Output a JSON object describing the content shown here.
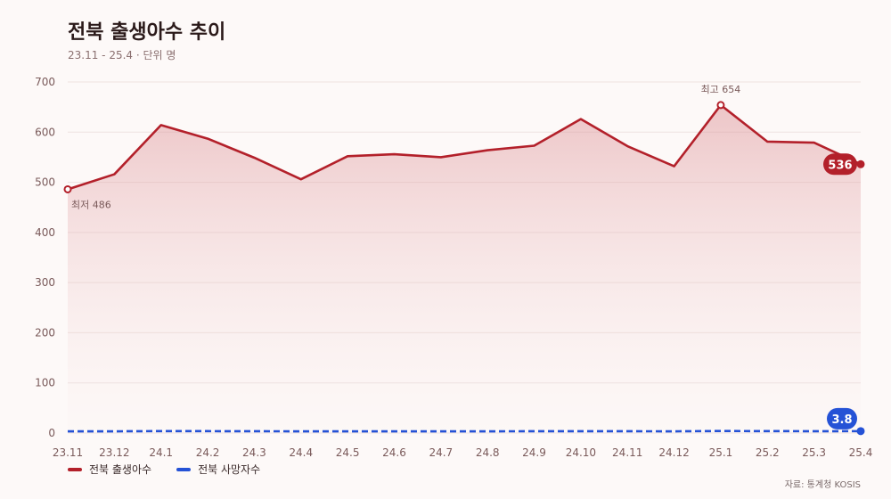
{
  "header": {
    "title": "전북 출생아수 추이",
    "subtitle": "23.11 - 25.4 · 단위 명"
  },
  "source": "자료: 통계청 KOSIS",
  "colors": {
    "birth": "#b3202a",
    "death": "#2552d6",
    "grid": "#eee3e1",
    "tick": "#7a5a5a"
  },
  "chart_data": {
    "type": "line",
    "title": "전북 출생아수 추이",
    "subtitle": "23.11 - 25.4 · 단위 명",
    "categories": [
      "23.11",
      "23.12",
      "24.1",
      "24.2",
      "24.3",
      "24.4",
      "24.5",
      "24.6",
      "24.7",
      "24.8",
      "24.9",
      "24.10",
      "24.11",
      "24.12",
      "25.1",
      "25.2",
      "25.3",
      "25.4"
    ],
    "series": [
      {
        "name": "전북 출생아수",
        "values": [
          486,
          516,
          614,
          587,
          549,
          506,
          552,
          556,
          550,
          564,
          573,
          626,
          572,
          532,
          654,
          581,
          579,
          536
        ]
      },
      {
        "name": "전북 사망자수",
        "values": [
          3.4,
          3.5,
          3.9,
          3.8,
          3.6,
          3.5,
          3.4,
          3.5,
          3.4,
          3.5,
          3.6,
          3.7,
          3.6,
          3.5,
          4.1,
          3.9,
          3.7,
          3.8
        ]
      }
    ],
    "ylim": [
      0,
      700
    ],
    "yticks": [
      0,
      100,
      200,
      300,
      400,
      500,
      600,
      700
    ],
    "annotations": {
      "max_label": "최고 654",
      "min_label": "최저 486",
      "last_birth_label": "536",
      "last_death_label": "3.8"
    },
    "grid": true,
    "legend": "bottom-left"
  }
}
